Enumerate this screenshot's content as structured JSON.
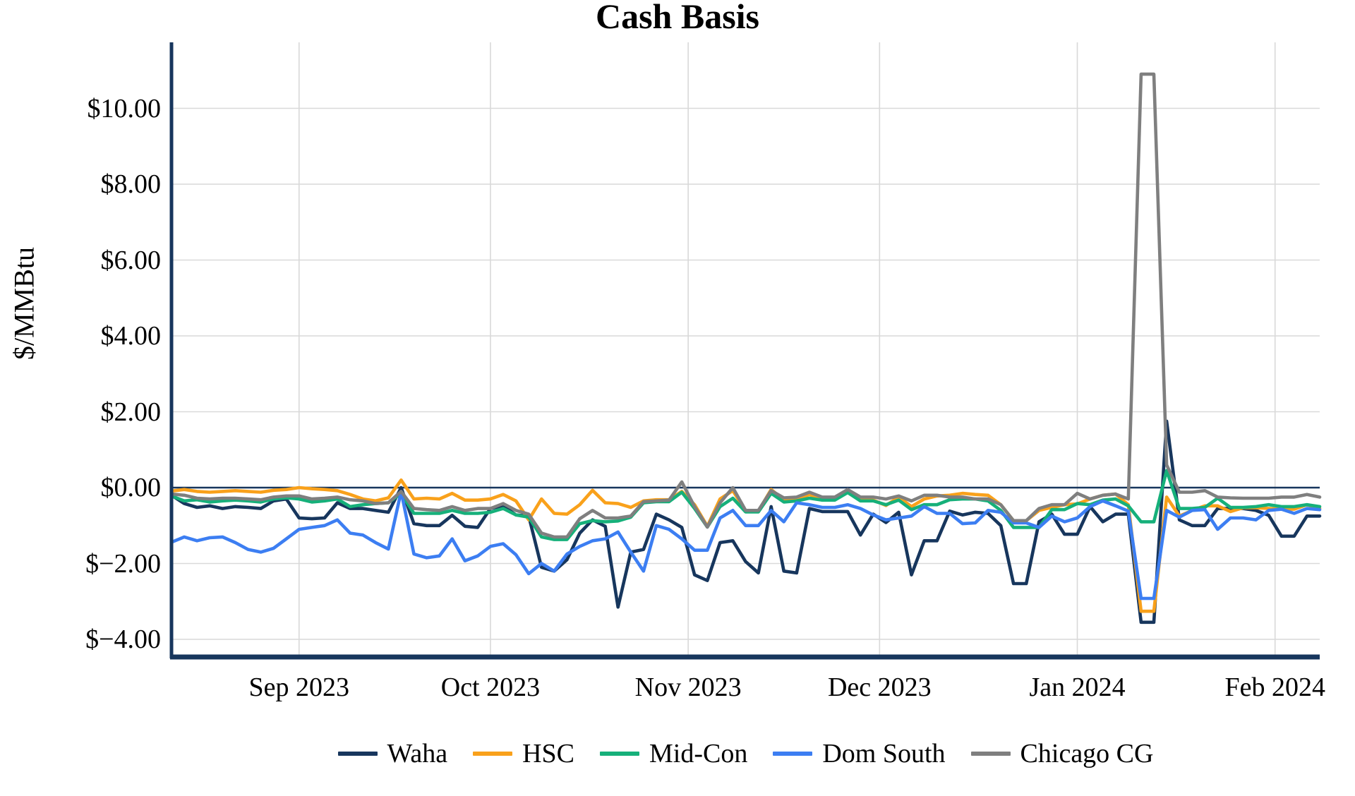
{
  "title": "Cash Basis",
  "y_axis": {
    "label": "$/MMBtu",
    "ticks": [
      {
        "label": "$10.00",
        "value": 10
      },
      {
        "label": "$8.00",
        "value": 8
      },
      {
        "label": "$6.00",
        "value": 6
      },
      {
        "label": "$4.00",
        "value": 4
      },
      {
        "label": "$2.00",
        "value": 2
      },
      {
        "label": "$0.00",
        "value": 0
      },
      {
        "label": "$−2.00",
        "value": -2
      },
      {
        "label": "$−4.00",
        "value": -4
      }
    ]
  },
  "x_axis": {
    "ticks": [
      {
        "label": "Sep 2023",
        "day": 20
      },
      {
        "label": "Oct 2023",
        "day": 50
      },
      {
        "label": "Nov 2023",
        "day": 81
      },
      {
        "label": "Dec 2023",
        "day": 111
      },
      {
        "label": "Jan 2024",
        "day": 142
      },
      {
        "label": "Feb 2024",
        "day": 173
      }
    ]
  },
  "legend": {
    "items": [
      {
        "label": "Waha",
        "color": "#17365d"
      },
      {
        "label": "HSC",
        "color": "#f9a11b"
      },
      {
        "label": "Mid-Con",
        "color": "#16b07a"
      },
      {
        "label": "Dom South",
        "color": "#3c7ef2"
      },
      {
        "label": "Chicago CG",
        "color": "#7f7f7f"
      }
    ]
  },
  "colors": {
    "axis": "#17365d",
    "zero_line": "#17365d",
    "gridline": "#d9d9d9",
    "background": "#ffffff"
  },
  "chart_data": {
    "type": "line",
    "title": "Cash Basis",
    "ylabel": "$/MMBtu",
    "xlabel": "",
    "ylim": [
      -4.45,
      11.74
    ],
    "grid": true,
    "legend_position": "bottom",
    "x_start": "2023-08-12",
    "x_end": "2024-02-08",
    "x_step_days": 2,
    "x_total_days": 180,
    "yticks": [
      10,
      8,
      6,
      4,
      2,
      0,
      -2,
      -4
    ],
    "series": [
      {
        "name": "Waha",
        "color": "#17365d",
        "values": [
          -0.2,
          -0.42,
          -0.52,
          -0.48,
          -0.55,
          -0.5,
          -0.52,
          -0.55,
          -0.35,
          -0.3,
          -0.8,
          -0.82,
          -0.8,
          -0.4,
          -0.55,
          -0.55,
          -0.6,
          -0.65,
          0.0,
          -0.95,
          -1.0,
          -1.0,
          -0.73,
          -1.02,
          -1.05,
          -0.55,
          -0.48,
          -0.72,
          -0.75,
          -2.1,
          -2.2,
          -1.9,
          -1.2,
          -0.85,
          -1.02,
          -3.15,
          -1.7,
          -1.63,
          -0.7,
          -0.85,
          -1.05,
          -2.3,
          -2.45,
          -1.45,
          -1.4,
          -1.95,
          -2.25,
          -0.5,
          -2.2,
          -2.25,
          -0.55,
          -0.63,
          -0.63,
          -0.63,
          -1.25,
          -0.7,
          -0.92,
          -0.65,
          -2.3,
          -1.4,
          -1.4,
          -0.62,
          -0.72,
          -0.65,
          -0.68,
          -1.0,
          -2.53,
          -2.53,
          -0.9,
          -0.7,
          -1.23,
          -1.23,
          -0.5,
          -0.9,
          -0.7,
          -0.7,
          -3.55,
          -3.55,
          1.75,
          -0.85,
          -1.0,
          -1.0,
          -0.55,
          -0.55,
          -0.55,
          -0.6,
          -0.73,
          -1.28,
          -1.28,
          -0.75,
          -0.75
        ]
      },
      {
        "name": "HSC",
        "color": "#f9a11b",
        "values": [
          -0.09,
          -0.05,
          -0.1,
          -0.12,
          -0.1,
          -0.08,
          -0.1,
          -0.12,
          -0.07,
          -0.05,
          0.0,
          -0.03,
          -0.05,
          -0.08,
          -0.18,
          -0.3,
          -0.35,
          -0.27,
          0.2,
          -0.3,
          -0.28,
          -0.3,
          -0.15,
          -0.33,
          -0.33,
          -0.3,
          -0.18,
          -0.35,
          -0.85,
          -0.3,
          -0.68,
          -0.7,
          -0.45,
          -0.07,
          -0.4,
          -0.42,
          -0.52,
          -0.35,
          -0.32,
          -0.32,
          -0.1,
          -0.45,
          -1.02,
          -0.3,
          -0.08,
          -0.62,
          -0.62,
          -0.05,
          -0.33,
          -0.33,
          -0.18,
          -0.32,
          -0.32,
          -0.12,
          -0.33,
          -0.33,
          -0.47,
          -0.25,
          -0.5,
          -0.3,
          -0.22,
          -0.2,
          -0.15,
          -0.18,
          -0.2,
          -0.45,
          -0.87,
          -0.87,
          -0.6,
          -0.52,
          -0.45,
          -0.43,
          -0.3,
          -0.2,
          -0.17,
          -0.45,
          -3.26,
          -3.26,
          -0.25,
          -0.75,
          -0.6,
          -0.48,
          -0.48,
          -0.63,
          -0.53,
          -0.53,
          -0.55,
          -0.57,
          -0.57,
          -0.45,
          -0.55
        ]
      },
      {
        "name": "Mid-Con",
        "color": "#16b07a",
        "values": [
          -0.22,
          -0.35,
          -0.32,
          -0.38,
          -0.35,
          -0.33,
          -0.35,
          -0.38,
          -0.3,
          -0.27,
          -0.3,
          -0.38,
          -0.35,
          -0.3,
          -0.5,
          -0.45,
          -0.42,
          -0.4,
          -0.15,
          -0.68,
          -0.68,
          -0.68,
          -0.6,
          -0.68,
          -0.68,
          -0.65,
          -0.55,
          -0.72,
          -0.78,
          -1.3,
          -1.37,
          -1.37,
          -0.95,
          -0.87,
          -0.9,
          -0.88,
          -0.78,
          -0.4,
          -0.37,
          -0.37,
          -0.12,
          -0.55,
          -1.04,
          -0.5,
          -0.28,
          -0.64,
          -0.64,
          -0.15,
          -0.38,
          -0.35,
          -0.28,
          -0.33,
          -0.33,
          -0.13,
          -0.35,
          -0.35,
          -0.45,
          -0.33,
          -0.58,
          -0.45,
          -0.45,
          -0.32,
          -0.3,
          -0.3,
          -0.35,
          -0.6,
          -1.05,
          -1.05,
          -1.05,
          -0.58,
          -0.58,
          -0.42,
          -0.45,
          -0.33,
          -0.3,
          -0.48,
          -0.9,
          -0.9,
          0.45,
          -0.55,
          -0.55,
          -0.52,
          -0.28,
          -0.52,
          -0.52,
          -0.5,
          -0.45,
          -0.5,
          -0.5,
          -0.45,
          -0.5
        ]
      },
      {
        "name": "Dom South",
        "color": "#3c7ef2",
        "values": [
          -1.44,
          -1.3,
          -1.4,
          -1.32,
          -1.3,
          -1.45,
          -1.63,
          -1.7,
          -1.6,
          -1.35,
          -1.1,
          -1.05,
          -1.0,
          -0.85,
          -1.2,
          -1.25,
          -1.45,
          -1.62,
          -0.1,
          -1.75,
          -1.85,
          -1.8,
          -1.35,
          -1.93,
          -1.8,
          -1.55,
          -1.48,
          -1.77,
          -2.27,
          -2.0,
          -2.2,
          -1.75,
          -1.55,
          -1.4,
          -1.35,
          -1.17,
          -1.7,
          -2.2,
          -1.0,
          -1.1,
          -1.35,
          -1.65,
          -1.65,
          -0.8,
          -0.6,
          -1.0,
          -1.0,
          -0.6,
          -0.9,
          -0.4,
          -0.45,
          -0.52,
          -0.52,
          -0.45,
          -0.55,
          -0.72,
          -0.85,
          -0.8,
          -0.75,
          -0.5,
          -0.68,
          -0.68,
          -0.95,
          -0.93,
          -0.6,
          -0.65,
          -0.93,
          -0.93,
          -1.05,
          -0.75,
          -0.9,
          -0.8,
          -0.5,
          -0.35,
          -0.48,
          -0.62,
          -2.92,
          -2.92,
          -0.6,
          -0.78,
          -0.6,
          -0.58,
          -1.1,
          -0.8,
          -0.8,
          -0.85,
          -0.6,
          -0.57,
          -0.68,
          -0.55,
          -0.58
        ]
      },
      {
        "name": "Chicago CG",
        "color": "#7f7f7f",
        "values": [
          -0.17,
          -0.2,
          -0.28,
          -0.3,
          -0.28,
          -0.28,
          -0.3,
          -0.32,
          -0.25,
          -0.22,
          -0.22,
          -0.3,
          -0.28,
          -0.25,
          -0.32,
          -0.35,
          -0.42,
          -0.4,
          -0.1,
          -0.55,
          -0.58,
          -0.6,
          -0.5,
          -0.6,
          -0.55,
          -0.55,
          -0.42,
          -0.6,
          -0.7,
          -1.2,
          -1.3,
          -1.3,
          -0.82,
          -0.6,
          -0.8,
          -0.8,
          -0.75,
          -0.37,
          -0.35,
          -0.33,
          0.15,
          -0.5,
          -1.04,
          -0.4,
          0.0,
          -0.6,
          -0.6,
          -0.08,
          -0.27,
          -0.25,
          -0.12,
          -0.25,
          -0.25,
          -0.05,
          -0.25,
          -0.25,
          -0.3,
          -0.22,
          -0.35,
          -0.2,
          -0.2,
          -0.25,
          -0.25,
          -0.3,
          -0.3,
          -0.45,
          -0.87,
          -0.87,
          -0.55,
          -0.45,
          -0.45,
          -0.15,
          -0.3,
          -0.2,
          -0.17,
          -0.3,
          10.9,
          10.9,
          0.6,
          -0.12,
          -0.12,
          -0.08,
          -0.25,
          -0.27,
          -0.28,
          -0.28,
          -0.28,
          -0.25,
          -0.25,
          -0.18,
          -0.25
        ]
      }
    ]
  }
}
